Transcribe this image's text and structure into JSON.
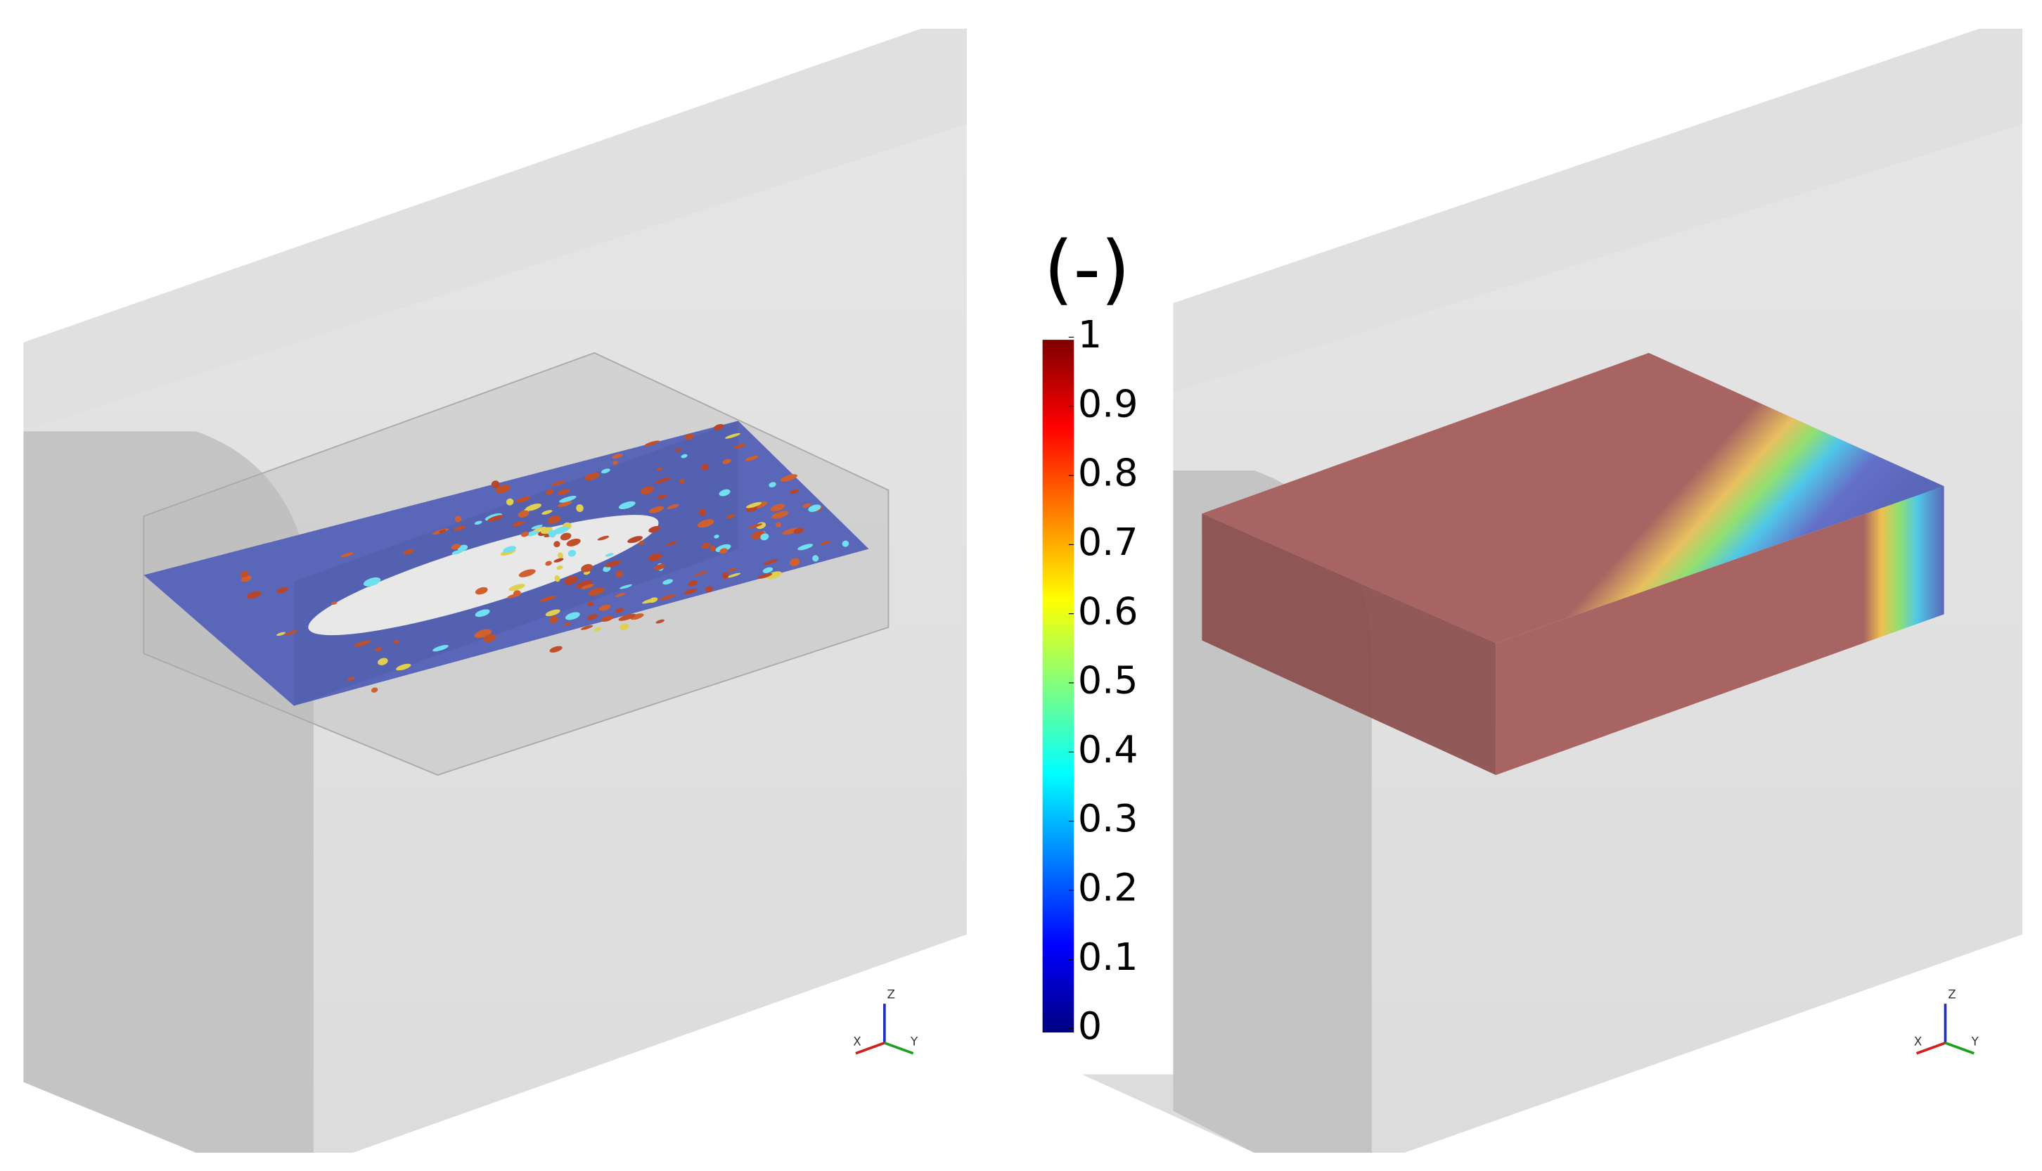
{
  "colorbar": {
    "title": "(-)",
    "lim": [
      0,
      1
    ],
    "ticks": [
      0,
      0.1,
      0.2,
      0.3,
      0.4,
      0.5,
      0.6,
      0.7,
      0.8,
      0.9,
      1
    ],
    "colors": [
      "#00007f",
      "#0000ff",
      "#007fff",
      "#00ffff",
      "#7fff7f",
      "#ffff00",
      "#ff7f00",
      "#ff0000",
      "#7f0000"
    ]
  },
  "triads": [
    {
      "x": "X",
      "y": "Y",
      "z": "Z"
    },
    {
      "x": "X",
      "y": "Y",
      "z": "Z"
    }
  ]
}
